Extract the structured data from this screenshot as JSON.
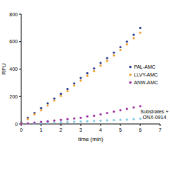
{
  "chart_data": {
    "type": "scatter",
    "x_label": "time (min)",
    "y_label": "RFU",
    "xlim": [
      0,
      7
    ],
    "xticks": [
      0,
      1,
      2,
      3,
      4,
      5,
      6,
      7
    ],
    "ylim": [
      0,
      800
    ],
    "yticks": [
      0,
      200,
      400,
      600,
      800
    ],
    "grid": false,
    "legend": "right",
    "x": [
      0,
      0.33,
      0.67,
      1,
      1.33,
      1.67,
      2,
      2.33,
      2.67,
      3,
      3.33,
      3.67,
      4,
      4.33,
      4.67,
      5,
      5.33,
      5.67,
      6
    ],
    "series": [
      {
        "name": "PAL-AMC",
        "color": "#2a3a8c",
        "marker": "circle",
        "values": [
          10,
          45,
          80,
          115,
          150,
          185,
          220,
          255,
          295,
          335,
          370,
          405,
          445,
          480,
          520,
          560,
          600,
          650,
          700
        ]
      },
      {
        "name": "LLVY-AMC",
        "color": "#f0a030",
        "marker": "circle",
        "values": [
          5,
          35,
          70,
          100,
          135,
          170,
          205,
          240,
          280,
          315,
          350,
          385,
          425,
          460,
          500,
          540,
          580,
          625,
          665
        ]
      },
      {
        "name": "ANW-AMC",
        "color": "#9b30a0",
        "marker": "circle",
        "values": [
          0,
          5,
          10,
          15,
          20,
          25,
          30,
          35,
          40,
          45,
          55,
          60,
          70,
          80,
          90,
          100,
          110,
          120,
          130
        ]
      }
    ],
    "annotation_series": {
      "name": "Substrates + ONX-0914",
      "color": "#7ec8e3",
      "marker": "circle",
      "values": [
        0,
        2,
        4,
        6,
        8,
        10,
        12,
        14,
        16,
        18,
        20,
        22,
        24,
        26,
        28,
        30,
        32,
        35,
        38
      ]
    }
  }
}
